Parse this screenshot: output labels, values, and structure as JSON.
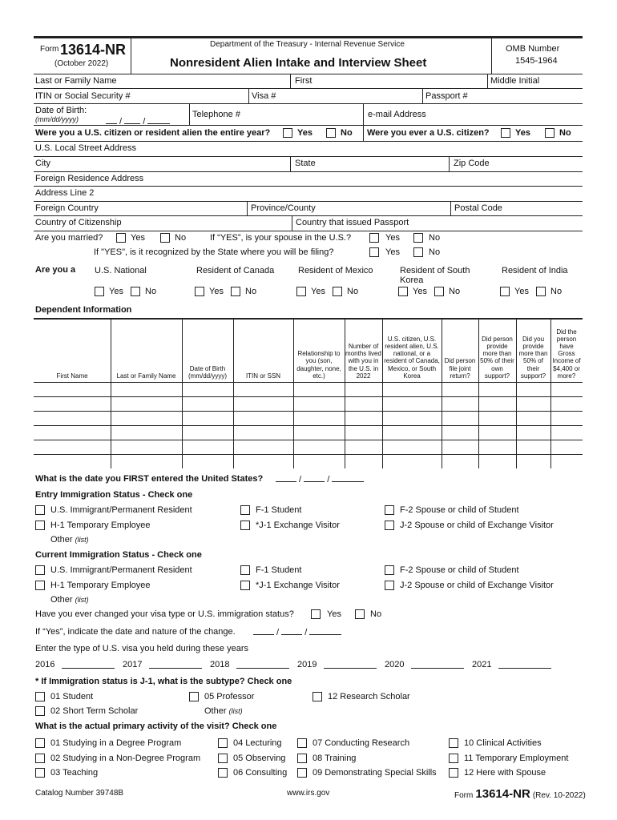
{
  "header": {
    "form_prefix": "Form",
    "form_number": "13614-NR",
    "form_date": "(October 2022)",
    "agency": "Department of the Treasury - Internal Revenue Service",
    "title": "Nonresident Alien Intake and Interview Sheet",
    "omb_label": "OMB Number",
    "omb_number": "1545-1964"
  },
  "fields": {
    "last_name": "Last or Family Name",
    "first": "First",
    "middle": "Middle Initial",
    "itin": "ITIN or Social Security #",
    "visa": "Visa #",
    "passport": "Passport #",
    "dob": "Date of Birth:",
    "dob_format": "(mm/dd/yyyy)",
    "telephone": "Telephone #",
    "email": "e-mail Address",
    "citizen_year": "Were you a U.S. citizen or resident alien the entire year?",
    "ever_citizen": "Were you ever a U.S. citizen?",
    "yes": "Yes",
    "no": "No",
    "street": "U.S. Local Street Address",
    "city": "City",
    "state": "State",
    "zip": "Zip Code",
    "foreign_addr": "Foreign Residence Address",
    "addr2": "Address Line 2",
    "foreign_country": "Foreign Country",
    "province": "Province/County",
    "postal": "Postal Code",
    "citizenship": "Country of Citizenship",
    "passport_country": "Country that issued Passport",
    "married": "Are you married?",
    "spouse_us": "If “YES”, is your spouse in the U.S.?",
    "recognized": "If \"YES\", is it recognized by the State where you will be filing?"
  },
  "are_you": {
    "label": "Are you a",
    "options": [
      "U.S. National",
      "Resident of Canada",
      "Resident of Mexico",
      "Resident of South Korea",
      "Resident of India"
    ]
  },
  "dependents": {
    "title": "Dependent Information",
    "columns": [
      "First Name",
      "Last or Family Name",
      "Date of Birth (mm/dd/yyyy)",
      "ITIN or SSN",
      "Relationship to you (son, daughter, none, etc.)",
      "Number of months lived with you in the U.S. in 2022",
      "U.S. citizen, U.S. resident alien, U.S. national, or a resident of Canada, Mexico, or South Korea",
      "Did person file joint return?",
      "Did person provide more than 50% of their own support?",
      "Did you provide more than 50% of their support?",
      "Did the person have Gross Income of $4,400 or more?"
    ],
    "row_count": 6
  },
  "entry_date": "What is the date you FIRST entered the United States?",
  "entry_status": {
    "title": "Entry Immigration Status - Check one"
  },
  "current_status": {
    "title": "Current Immigration Status - Check one"
  },
  "status_options": [
    "U.S. Immigrant/Permanent Resident",
    "F-1 Student",
    "F-2 Spouse or child of Student",
    "H-1 Temporary Employee",
    "*J-1 Exchange Visitor",
    "J-2 Spouse or child of Exchange Visitor"
  ],
  "other_list": "Other",
  "list_hint": "(list)",
  "changed_visa": "Have you ever changed your visa type or U.S. immigration status?",
  "if_yes": "If “Yes”, indicate the date and nature of the change.",
  "visa_years_prompt": "Enter the type of U.S. visa you held during these years",
  "years": [
    "2016",
    "2017",
    "2018",
    "2019",
    "2020",
    "2021"
  ],
  "j1": {
    "title": "* If Immigration status is J-1, what is the subtype? Check one",
    "options": [
      "01 Student",
      "05 Professor",
      "12 Research Scholar",
      "02 Short Term Scholar"
    ]
  },
  "activity": {
    "title": "What is the actual primary activity of the visit? Check one",
    "options": [
      [
        "01 Studying in a Degree Program",
        "04 Lecturing",
        "07 Conducting Research",
        "10 Clinical Activities"
      ],
      [
        "02 Studying in a Non-Degree Program",
        "05 Observing",
        "08 Training",
        "11 Temporary Employment"
      ],
      [
        "03 Teaching",
        "06 Consulting",
        "09 Demonstrating Special Skills",
        "12 Here with Spouse"
      ]
    ]
  },
  "footer": {
    "catalog": "Catalog Number 39748B",
    "website": "www.irs.gov",
    "form_prefix": "Form",
    "form_number": "13614-NR",
    "rev": "(Rev. 10-2022)"
  }
}
